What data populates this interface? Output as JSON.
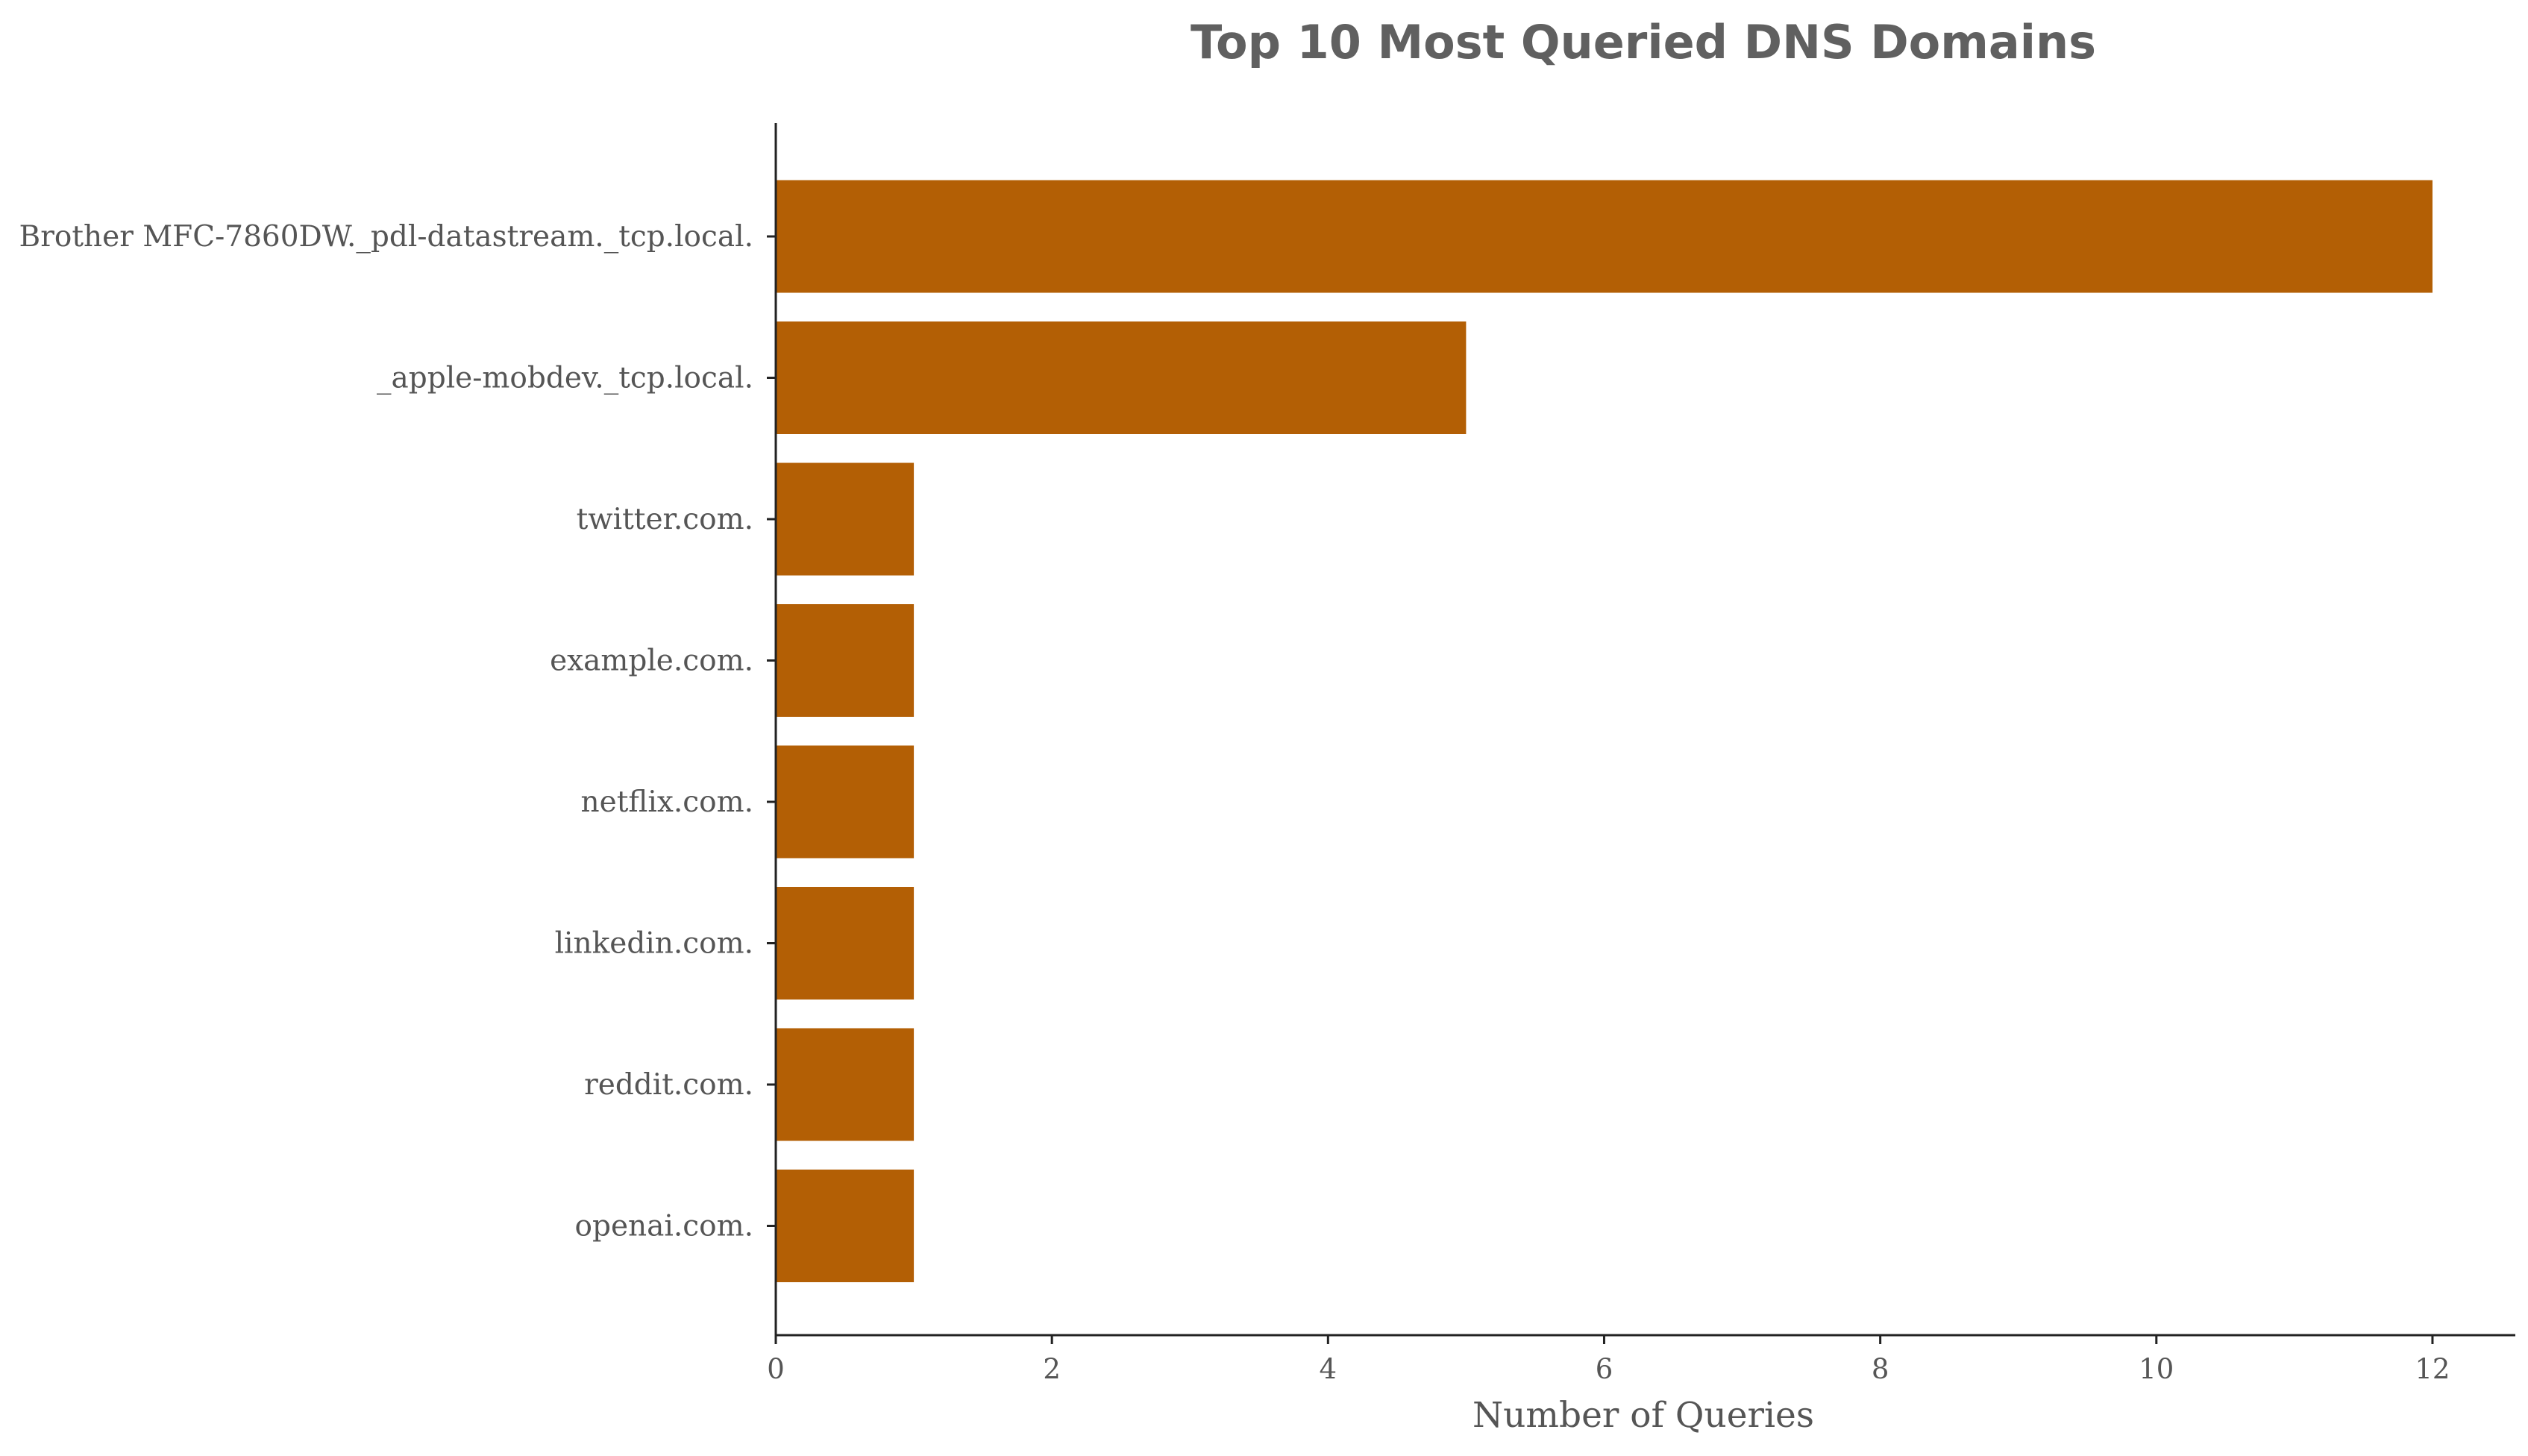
{
  "chart_data": {
    "type": "bar",
    "orientation": "horizontal",
    "title": "Top 10 Most Queried DNS Domains",
    "xlabel": "Number of Queries",
    "ylabel": "",
    "xlim": [
      0,
      12.6
    ],
    "xticks": [
      0,
      2,
      4,
      6,
      8,
      10,
      12
    ],
    "grid": false,
    "bar_color": "#b35f05",
    "categories": [
      "Brother MFC-7860DW._pdl-datastream._tcp.local.",
      "_apple-mobdev._tcp.local.",
      "twitter.com.",
      "example.com.",
      "netflix.com.",
      "linkedin.com.",
      "reddit.com.",
      "openai.com."
    ],
    "values": [
      12,
      5,
      1,
      1,
      1,
      1,
      1,
      1
    ]
  }
}
